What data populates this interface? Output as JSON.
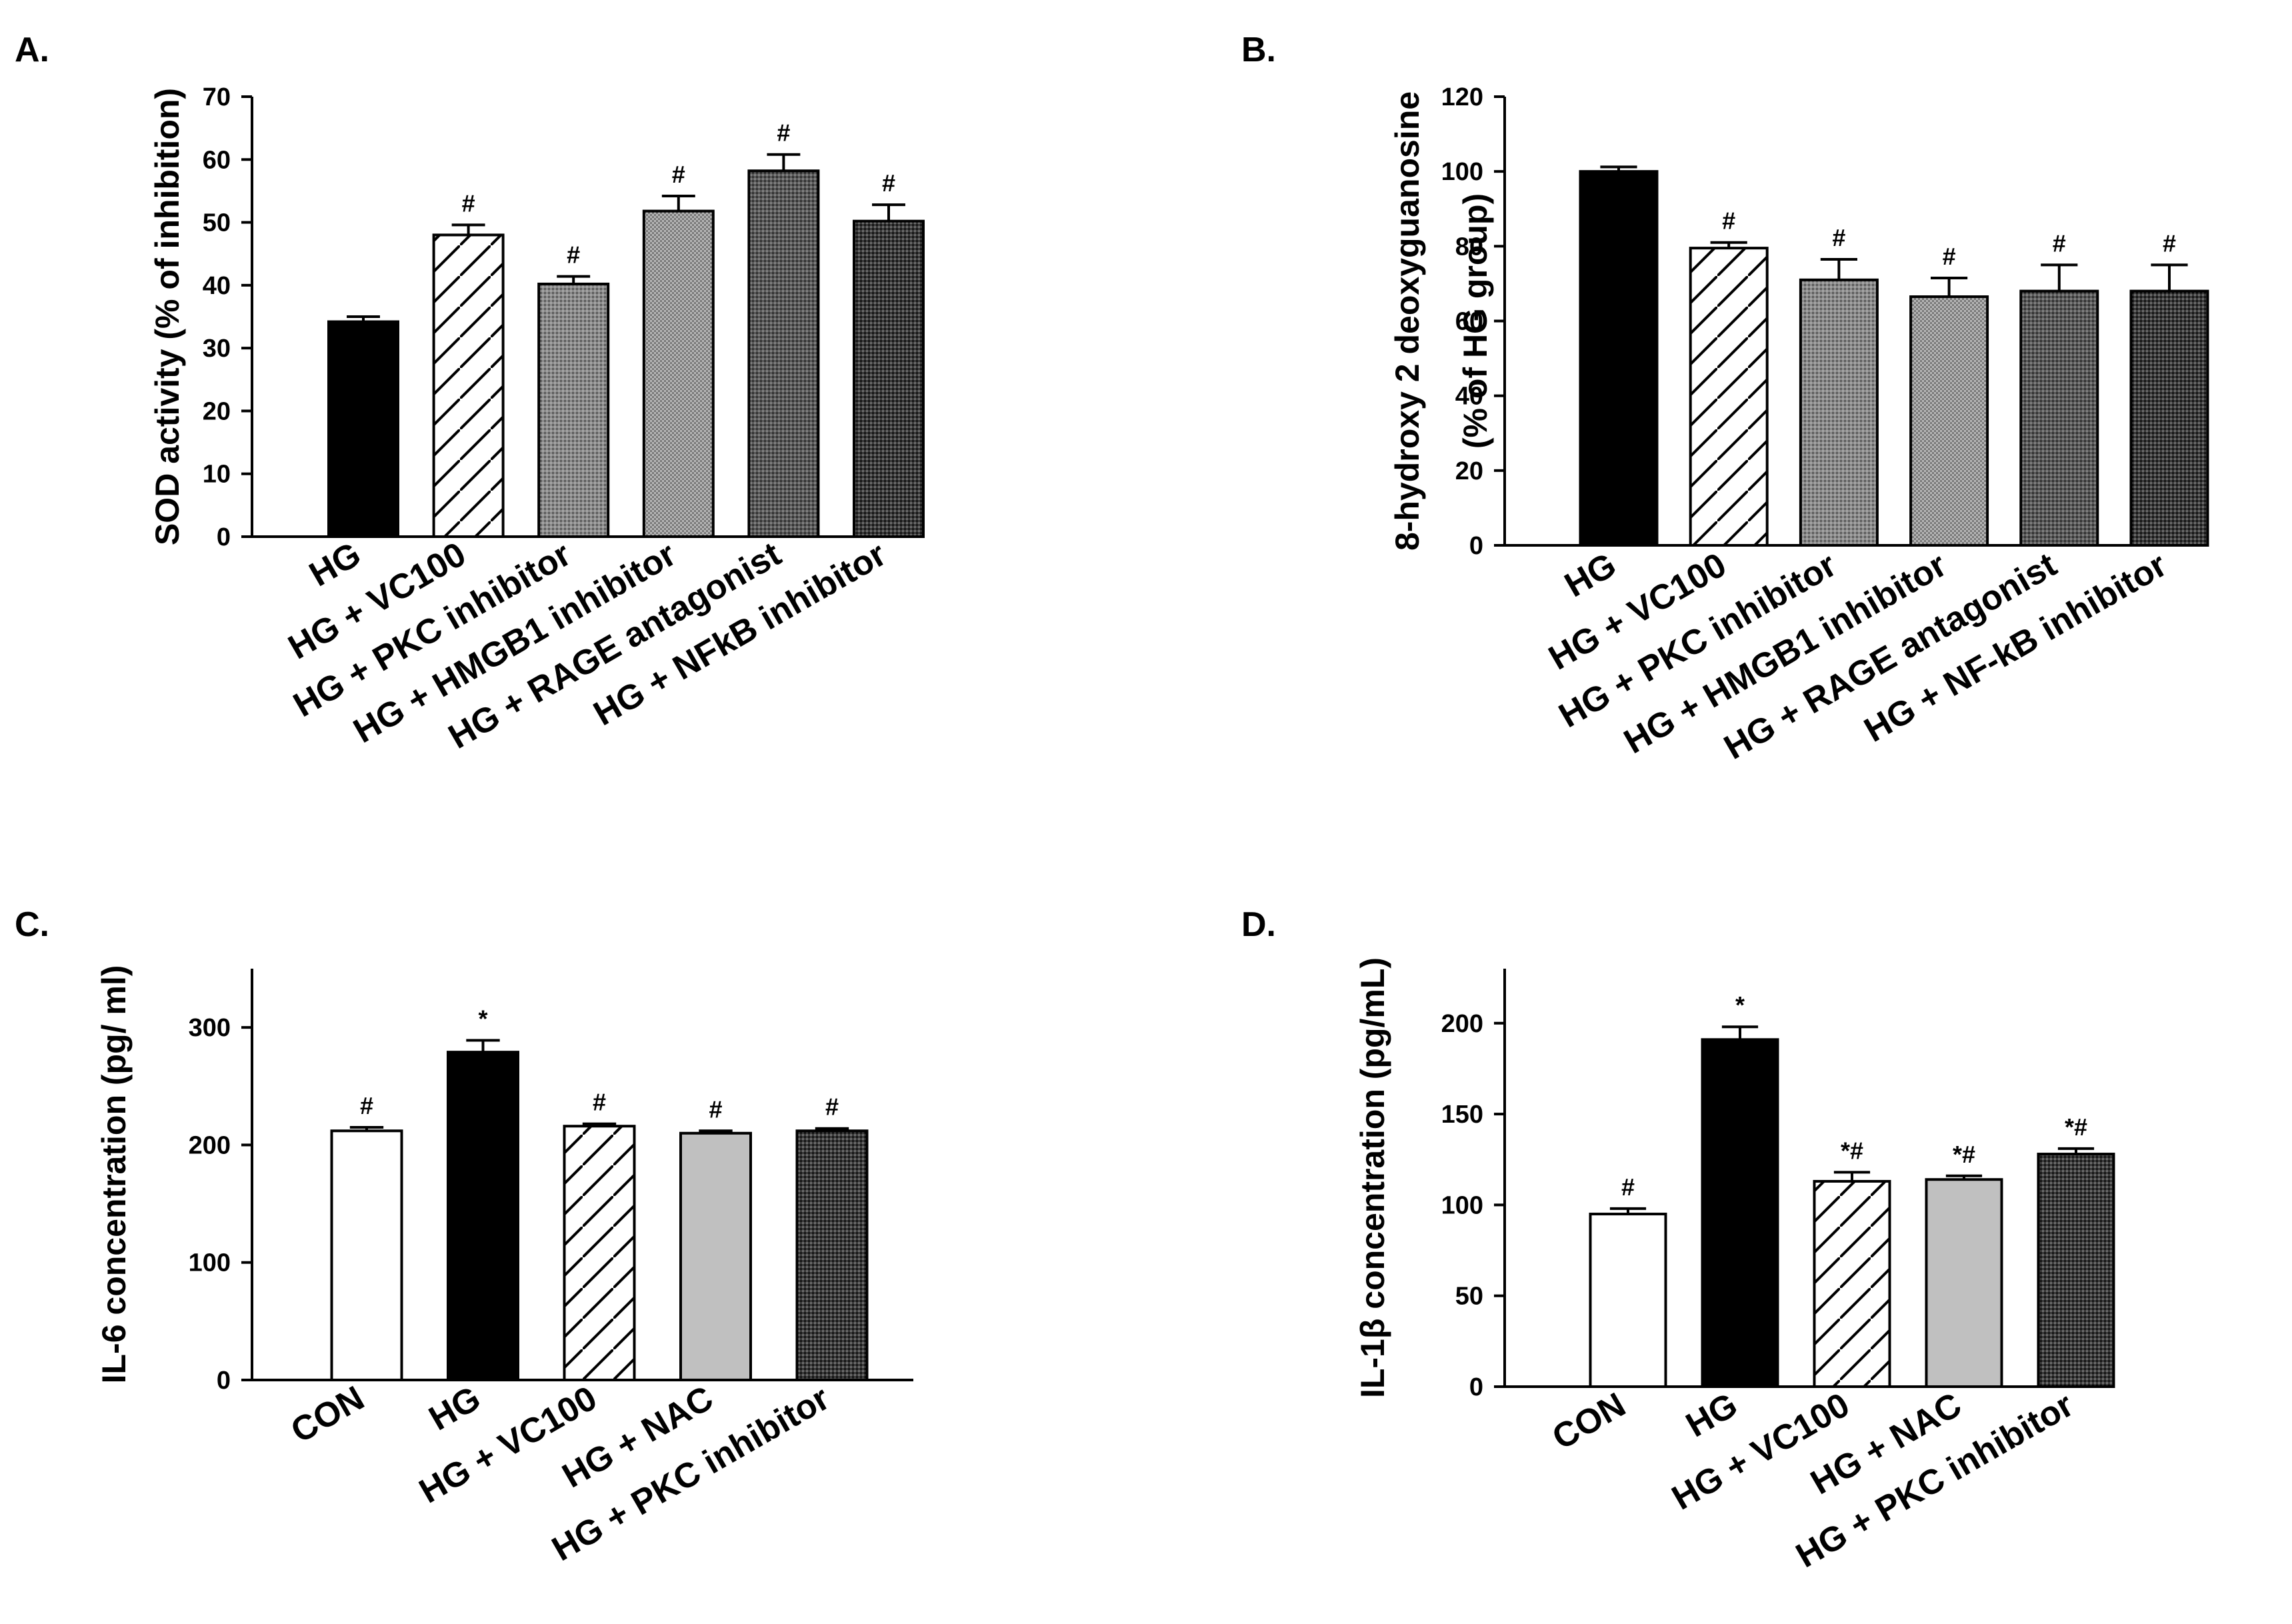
{
  "panels": [
    "A.",
    "B.",
    "C.",
    "D."
  ],
  "chart_data": [
    {
      "type": "bar",
      "panel": "A.",
      "ylabel": "SOD activity (% of inhibition)",
      "ylim": [
        0,
        70
      ],
      "yticks": [
        0,
        10,
        20,
        30,
        40,
        50,
        60,
        70
      ],
      "categories": [
        "HG",
        "HG + VC100",
        "HG + PKC inhibitor",
        "HG + HMGB1 inhibitor",
        "HG + RAGE antagonist",
        "HG + NFkB inhibitor"
      ],
      "values": [
        34.2,
        48,
        40.2,
        51.8,
        58.2,
        50.2
      ],
      "errors": [
        0.8,
        1.6,
        1.2,
        2.4,
        2.6,
        2.6
      ],
      "significance": [
        "",
        "#",
        "#",
        "#",
        "#",
        "#"
      ],
      "fills": [
        "solid-black",
        "hatch",
        "gray-dots",
        "light-dots",
        "dense-dots",
        "dark-dots"
      ]
    },
    {
      "type": "bar",
      "panel": "B.",
      "ylabel": [
        "8-hydroxy 2 deoxyguanosine",
        "(% of HG group)"
      ],
      "ylim": [
        0,
        120
      ],
      "yticks": [
        0,
        20,
        40,
        60,
        80,
        100,
        120
      ],
      "categories": [
        "HG",
        "HG + VC100",
        "HG + PKC inhibitor",
        "HG + HMGB1 inhibitor",
        "HG + RAGE antagonist",
        "HG + NF-kB inhibitor"
      ],
      "values": [
        100,
        79.5,
        71,
        66.5,
        68,
        68
      ],
      "errors": [
        1.2,
        1.5,
        5.5,
        5,
        7,
        7
      ],
      "significance": [
        "",
        "#",
        "#",
        "#",
        "#",
        "#"
      ],
      "fills": [
        "solid-black",
        "hatch",
        "gray-dots",
        "light-dots",
        "dense-dots",
        "dark-dots"
      ]
    },
    {
      "type": "bar",
      "panel": "C.",
      "ylabel": "IL-6 concentration (pg/ ml)",
      "ylim": [
        0,
        350
      ],
      "yticks": [
        0,
        100,
        200,
        300
      ],
      "categories": [
        "CON",
        "HG",
        "HG + VC100",
        "HG + NAC",
        "HG + PKC inhibitor"
      ],
      "values": [
        212,
        279,
        216,
        210,
        212
      ],
      "errors": [
        3,
        10,
        2,
        2,
        2
      ],
      "significance": [
        "#",
        "*",
        "#",
        "#",
        "#"
      ],
      "fills": [
        "white",
        "solid-black",
        "hatch",
        "light-gray",
        "dark-dots"
      ]
    },
    {
      "type": "bar",
      "panel": "D.",
      "ylabel": "IL-1β concentration (pg/mL)",
      "ylim": [
        0,
        230
      ],
      "yticks": [
        0,
        50,
        100,
        150,
        200
      ],
      "categories": [
        "CON",
        "HG",
        "HG + VC100",
        "HG + NAC",
        "HG + PKC inhibitor"
      ],
      "values": [
        95,
        191,
        113,
        114,
        128
      ],
      "errors": [
        3,
        7,
        5,
        2,
        3
      ],
      "significance": [
        "#",
        "*",
        "*#",
        "*#",
        "*#"
      ],
      "fills": [
        "white",
        "solid-black",
        "hatch",
        "light-gray",
        "dark-dots"
      ]
    }
  ]
}
